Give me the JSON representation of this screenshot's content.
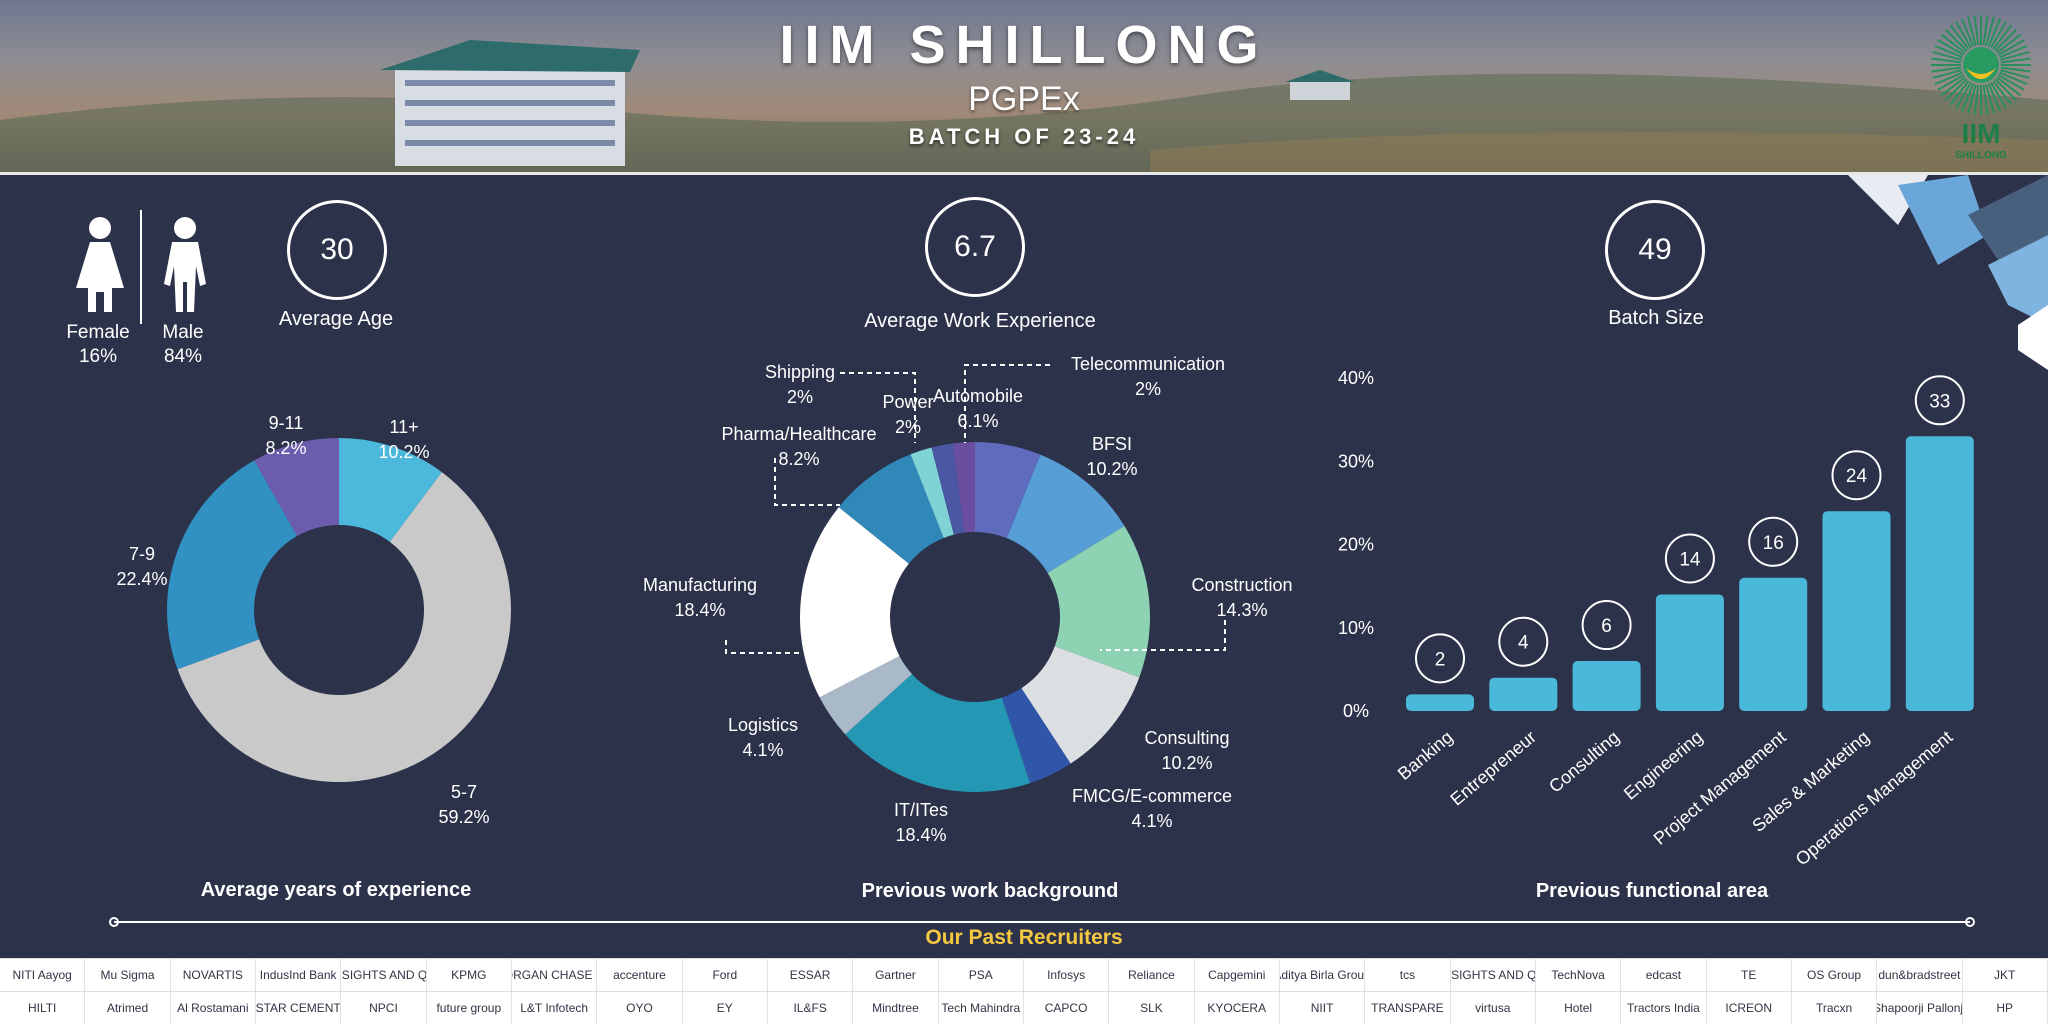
{
  "header": {
    "title": "IIM SHILLONG",
    "subtitle": "PGPEx",
    "batch": "BATCH OF 23-24",
    "logo_text": "IIM",
    "logo_sub": "SHILLONG"
  },
  "gender": {
    "female_label": "Female",
    "female_pct": "16%",
    "male_label": "Male",
    "male_pct": "84%"
  },
  "stats": {
    "age": {
      "value": "30",
      "label": "Average Age"
    },
    "work_exp": {
      "value": "6.7",
      "label": "Average Work Experience"
    },
    "batch_size": {
      "value": "49",
      "label": "Batch Size"
    }
  },
  "sections": {
    "experience": "Average years of experience",
    "background": "Previous work background",
    "functional": "Previous functional area",
    "recruiters": "Our Past Recruiters"
  },
  "chart_data": [
    {
      "type": "pie",
      "title": "Average years of experience",
      "slices": [
        {
          "label": "11+",
          "value": 10.2,
          "text": "10.2%",
          "color": "#4cb8db"
        },
        {
          "label": "5-7",
          "value": 59.2,
          "text": "59.2%",
          "color": "#c9c9c9"
        },
        {
          "label": "7-9",
          "value": 22.4,
          "text": "22.4%",
          "color": "#3191c3"
        },
        {
          "label": "9-11",
          "value": 8.2,
          "text": "8.2%",
          "color": "#6c5cad"
        }
      ]
    },
    {
      "type": "pie",
      "title": "Previous work background",
      "slices": [
        {
          "label": "Automobile",
          "value": 6.1,
          "text": "6.1%",
          "color": "#5f6cbd"
        },
        {
          "label": "BFSI",
          "value": 10.2,
          "text": "10.2%",
          "color": "#579dd6"
        },
        {
          "label": "Construction",
          "value": 14.3,
          "text": "14.3%",
          "color": "#8ed2b4"
        },
        {
          "label": "Consulting",
          "value": 10.2,
          "text": "10.2%",
          "color": "#dcdfe2"
        },
        {
          "label": "FMCG/E-commerce",
          "value": 4.1,
          "text": "4.1%",
          "color": "#2f56a8"
        },
        {
          "label": "IT/ITes",
          "value": 18.4,
          "text": "18.4%",
          "color": "#2497b4"
        },
        {
          "label": "Logistics",
          "value": 4.1,
          "text": "4.1%",
          "color": "#a9b9c8"
        },
        {
          "label": "Manufacturing",
          "value": 18.4,
          "text": "18.4%",
          "color": "#ffffff"
        },
        {
          "label": "Pharma/Healthcare",
          "value": 8.2,
          "text": "8.2%",
          "color": "#2f88b8"
        },
        {
          "label": "Shipping",
          "value": 2,
          "text": "2%",
          "color": "#7fd3d6"
        },
        {
          "label": "Power",
          "value": 2,
          "text": "2%",
          "color": "#4a57a3"
        },
        {
          "label": "Telecommunication",
          "value": 2,
          "text": "2%",
          "color": "#6a4fa0"
        }
      ]
    },
    {
      "type": "bar",
      "title": "Previous functional area",
      "categories": [
        "Banking",
        "Entrepreneur",
        "Consulting",
        "Engineering",
        "Project Management",
        "Sales & Marketing",
        "Operations Management"
      ],
      "values": [
        2,
        4,
        6,
        14,
        16,
        24,
        33
      ],
      "value_labels": [
        "2",
        "4",
        "6",
        "14",
        "16",
        "24",
        "33"
      ],
      "ylim": [
        0,
        40
      ],
      "yticks": [
        "0%",
        "10%",
        "20%",
        "30%",
        "40%"
      ],
      "color": "#4ab8d9"
    }
  ],
  "recruiters_row1": [
    "NITI Aayog",
    "Mu Sigma",
    "NOVARTIS",
    "IndusInd Bank",
    "TATA INSIGHTS AND QUANTS",
    "KPMG",
    "JPMORGAN CHASE & CO.",
    "accenture",
    "Ford",
    "ESSAR",
    "Gartner",
    "PSA",
    "Infosys",
    "Reliance",
    "Capgemini",
    "Aditya Birla Group",
    "tcs",
    "TATA INSIGHTS AND QUANTS",
    "TechNova",
    "edcast",
    "TE",
    "OS Group",
    "dun&bradstreet",
    "JKT"
  ],
  "recruiters_row2": [
    "HILTI",
    "Atrimed",
    "Al Rostamani",
    "STAR CEMENT",
    "NPCI",
    "future group",
    "L&T Infotech",
    "OYO",
    "EY",
    "IL&FS",
    "Mindtree",
    "Tech Mahindra",
    "CAPCO",
    "SLK",
    "KYOCERA",
    "NIIT",
    "TRANSPARE",
    "virtusa",
    "Hotel",
    "Tractors India",
    "ICREON",
    "Tracxn",
    "Shapoorji Pallonji",
    "HP"
  ]
}
